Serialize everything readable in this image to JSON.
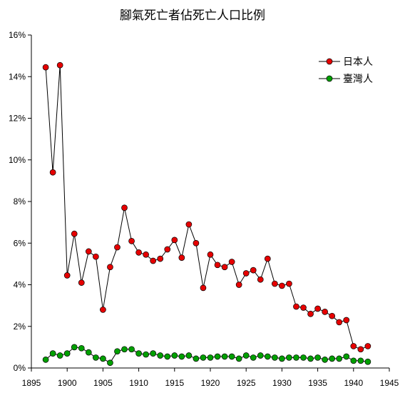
{
  "chart_data": {
    "type": "line",
    "title": "腳氣死亡者佔死亡人口比例",
    "xlabel": "",
    "ylabel": "",
    "xlim": [
      1895,
      1945
    ],
    "ylim": [
      0,
      16
    ],
    "x_ticks": [
      "1895",
      "1900",
      "1905",
      "1910",
      "1915",
      "1920",
      "1925",
      "1930",
      "1935",
      "1940",
      "1945"
    ],
    "y_ticks": [
      "0%",
      "2%",
      "4%",
      "6%",
      "8%",
      "10%",
      "12%",
      "14%",
      "16%"
    ],
    "legend_position": "top-right",
    "series": [
      {
        "name": "日本人",
        "color": "#e60000",
        "x": [
          1897,
          1898,
          1899,
          1900,
          1901,
          1902,
          1903,
          1904,
          1905,
          1906,
          1907,
          1908,
          1909,
          1910,
          1911,
          1912,
          1913,
          1914,
          1915,
          1916,
          1917,
          1918,
          1919,
          1920,
          1921,
          1922,
          1923,
          1924,
          1925,
          1926,
          1927,
          1928,
          1929,
          1930,
          1931,
          1932,
          1933,
          1934,
          1935,
          1936,
          1937,
          1938,
          1939,
          1940,
          1941,
          1942
        ],
        "values": [
          14.45,
          9.4,
          14.55,
          4.45,
          6.45,
          4.1,
          5.6,
          5.35,
          2.8,
          4.85,
          5.8,
          7.7,
          6.1,
          5.55,
          5.45,
          5.15,
          5.25,
          5.7,
          6.15,
          5.3,
          6.9,
          6.0,
          3.85,
          5.45,
          4.95,
          4.85,
          5.1,
          4.0,
          4.55,
          4.7,
          4.25,
          5.25,
          4.05,
          3.95,
          4.05,
          2.95,
          2.9,
          2.6,
          2.85,
          2.7,
          2.5,
          2.2,
          2.3,
          1.05,
          0.9,
          1.05
        ]
      },
      {
        "name": "臺灣人",
        "color": "#00a000",
        "x": [
          1897,
          1898,
          1899,
          1900,
          1901,
          1902,
          1903,
          1904,
          1905,
          1906,
          1907,
          1908,
          1909,
          1910,
          1911,
          1912,
          1913,
          1914,
          1915,
          1916,
          1917,
          1918,
          1919,
          1920,
          1921,
          1922,
          1923,
          1924,
          1925,
          1926,
          1927,
          1928,
          1929,
          1930,
          1931,
          1932,
          1933,
          1934,
          1935,
          1936,
          1937,
          1938,
          1939,
          1940,
          1941,
          1942
        ],
        "values": [
          0.4,
          0.7,
          0.6,
          0.7,
          1.0,
          0.95,
          0.75,
          0.5,
          0.45,
          0.25,
          0.8,
          0.9,
          0.9,
          0.7,
          0.65,
          0.7,
          0.6,
          0.55,
          0.6,
          0.55,
          0.6,
          0.45,
          0.5,
          0.5,
          0.55,
          0.55,
          0.55,
          0.45,
          0.6,
          0.5,
          0.6,
          0.55,
          0.5,
          0.45,
          0.5,
          0.5,
          0.5,
          0.45,
          0.5,
          0.4,
          0.45,
          0.45,
          0.55,
          0.35,
          0.35,
          0.3
        ]
      }
    ]
  }
}
